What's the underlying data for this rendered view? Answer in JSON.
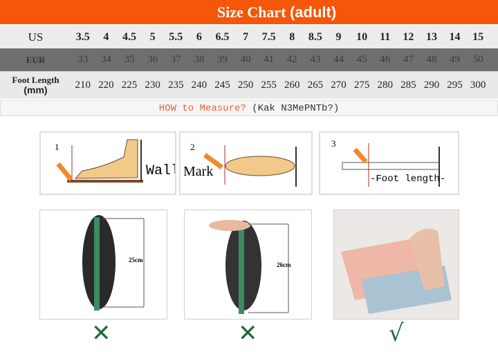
{
  "title": {
    "main": "Size Chart",
    "sub": "(adult)"
  },
  "table": {
    "us": {
      "label": "US",
      "values": [
        "3.5",
        "4",
        "4.5",
        "5",
        "5.5",
        "6",
        "6.5",
        "7",
        "7.5",
        "8",
        "8.5",
        "9",
        "10",
        "11",
        "12",
        "13",
        "14",
        "15"
      ]
    },
    "eur": {
      "label": "EUR",
      "values": [
        "33",
        "34",
        "35",
        "36",
        "37",
        "38",
        "39",
        "40",
        "41",
        "42",
        "43",
        "44",
        "45",
        "46",
        "47",
        "48",
        "49",
        "50"
      ]
    },
    "foot": {
      "label": "Foot Length",
      "unit": "(mm)",
      "values": [
        "210",
        "220",
        "225",
        "230",
        "235",
        "240",
        "245",
        "250",
        "255",
        "260",
        "265",
        "270",
        "275",
        "280",
        "285",
        "290",
        "295",
        "300"
      ]
    }
  },
  "measure": {
    "question": "HOW to Measure?",
    "translation": "(Kak N3MePNTb?)"
  },
  "steps": [
    {
      "num": "1",
      "label": "Wall"
    },
    {
      "num": "2",
      "label": "Mark"
    },
    {
      "num": "3",
      "label": "-Foot length-"
    }
  ],
  "photos": [
    {
      "measure": "25cm",
      "verdict": "✕",
      "verdict_icon": "cross-icon"
    },
    {
      "measure": "26cm",
      "verdict": "✕",
      "verdict_icon": "cross-icon"
    },
    {
      "measure": "",
      "verdict": "√",
      "verdict_icon": "check-icon"
    }
  ],
  "colors": {
    "header": "#f5560a",
    "eur_row": "#6f6f6f",
    "verdict": "#1e6b3a",
    "mark_line": "#a0302a"
  }
}
